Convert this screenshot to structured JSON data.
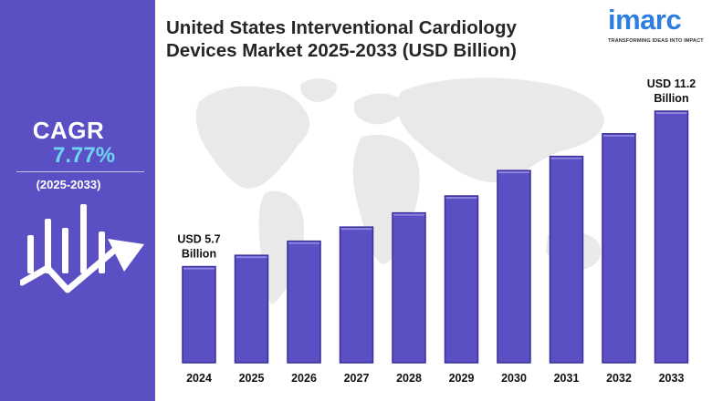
{
  "cagr": {
    "label": "CAGR",
    "value": "7.77%",
    "period": "(2025-2033)"
  },
  "logo": {
    "word": "imarc",
    "tagline": "TRANSFORMING IDEAS INTO IMPACT"
  },
  "colors": {
    "panel": "#5b4fc4",
    "bar": "#5b4fc4",
    "bar_edge": "#3a2f9a",
    "cagr_value": "#6fd3f2",
    "map": "#e6e6e6"
  },
  "chart_data": {
    "type": "bar",
    "title": "United States Interventional Cardiology Devices Market 2025-2033 (USD Billion)",
    "categories": [
      "2024",
      "2025",
      "2026",
      "2027",
      "2028",
      "2029",
      "2030",
      "2031",
      "2032",
      "2033"
    ],
    "values": [
      5.7,
      6.1,
      6.6,
      7.1,
      7.6,
      8.2,
      9.1,
      9.6,
      10.4,
      11.2
    ],
    "annotations": [
      {
        "category": "2024",
        "line1": "USD 5.7",
        "line2": "Billion"
      },
      {
        "category": "2033",
        "line1": "USD 11.2",
        "line2": "Billion"
      }
    ],
    "ylim": [
      2.3,
      11.2
    ],
    "grid": false
  }
}
